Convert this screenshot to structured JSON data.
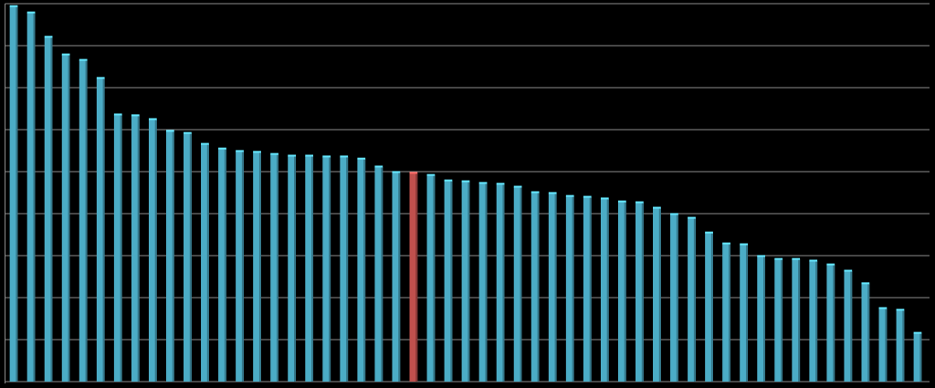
{
  "chart_data": {
    "type": "bar",
    "categories": [
      null,
      null,
      null,
      null,
      null,
      null,
      null,
      null,
      null,
      null,
      null,
      null,
      null,
      null,
      null,
      null,
      null,
      null,
      null,
      null,
      null,
      null,
      null,
      null,
      null,
      null,
      null,
      null,
      null,
      null,
      null,
      null,
      null,
      null,
      null,
      null,
      null,
      null,
      null,
      null,
      null,
      null,
      null,
      null,
      null,
      null,
      null,
      null,
      null,
      null,
      null,
      null,
      null
    ],
    "values": [
      8.93,
      8.78,
      8.2,
      7.78,
      7.65,
      7.22,
      6.35,
      6.33,
      6.24,
      5.96,
      5.91,
      5.65,
      5.54,
      5.48,
      5.46,
      5.41,
      5.37,
      5.37,
      5.35,
      5.35,
      5.3,
      5.11,
      4.98,
      4.96,
      4.91,
      4.78,
      4.76,
      4.72,
      4.7,
      4.63,
      4.5,
      4.48,
      4.41,
      4.39,
      4.35,
      4.28,
      4.26,
      4.13,
      3.98,
      3.89,
      3.54,
      3.28,
      3.26,
      2.98,
      2.91,
      2.91,
      2.87,
      2.78,
      2.63,
      2.33,
      1.74,
      1.7,
      1.15
    ],
    "colors": [
      "#4bacc6",
      "#4bacc6",
      "#4bacc6",
      "#4bacc6",
      "#4bacc6",
      "#4bacc6",
      "#4bacc6",
      "#4bacc6",
      "#4bacc6",
      "#4bacc6",
      "#4bacc6",
      "#4bacc6",
      "#4bacc6",
      "#4bacc6",
      "#4bacc6",
      "#4bacc6",
      "#4bacc6",
      "#4bacc6",
      "#4bacc6",
      "#4bacc6",
      "#4bacc6",
      "#4bacc6",
      "#4bacc6",
      "#c0504d",
      "#4bacc6",
      "#4bacc6",
      "#4bacc6",
      "#4bacc6",
      "#4bacc6",
      "#4bacc6",
      "#4bacc6",
      "#4bacc6",
      "#4bacc6",
      "#4bacc6",
      "#4bacc6",
      "#4bacc6",
      "#4bacc6",
      "#4bacc6",
      "#4bacc6",
      "#4bacc6",
      "#4bacc6",
      "#4bacc6",
      "#4bacc6",
      "#4bacc6",
      "#4bacc6",
      "#4bacc6",
      "#4bacc6",
      "#4bacc6",
      "#4bacc6",
      "#4bacc6",
      "#4bacc6",
      "#4bacc6",
      "#4bacc6"
    ],
    "ylim": [
      0,
      9
    ],
    "yticks": [
      0,
      1,
      2,
      3,
      4,
      5,
      6,
      7,
      8,
      9
    ],
    "grid": true
  }
}
